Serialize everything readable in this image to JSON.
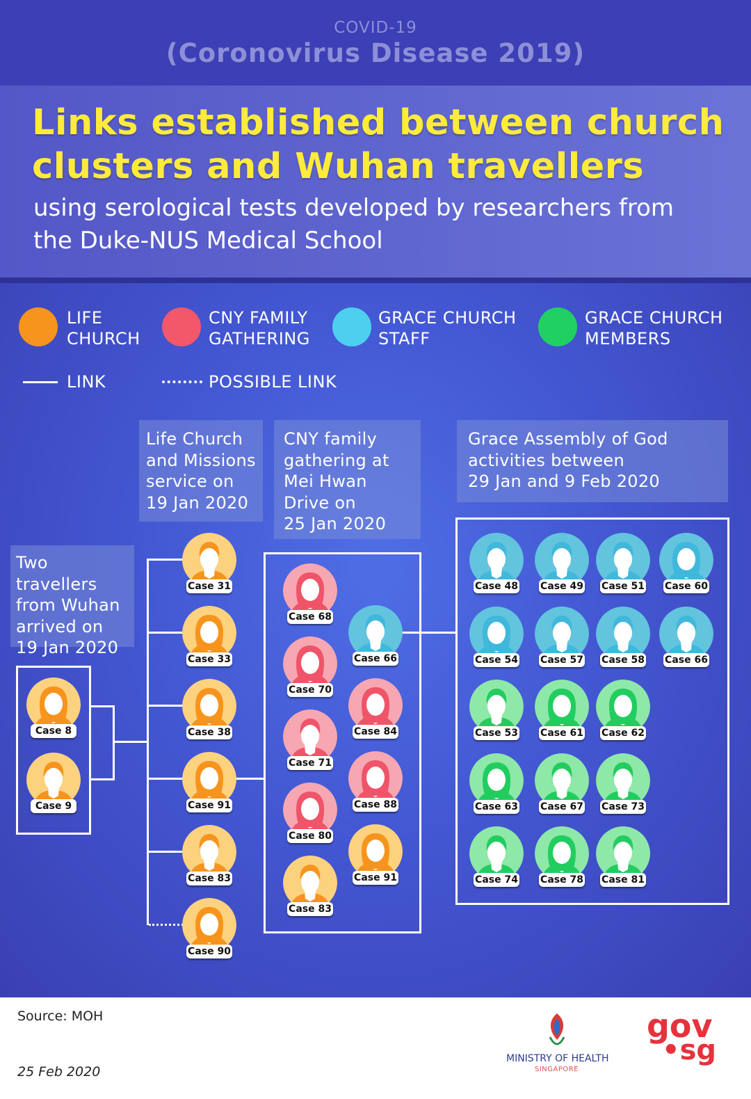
{
  "header": {
    "line1": "COVID-19",
    "line2": "(Coronovirus Disease 2019)",
    "title_line1": "Links established between church",
    "title_line2": "clusters and Wuhan travellers",
    "subtitle_line1": "using serological tests developed by researchers from",
    "subtitle_line2": "the Duke-NUS Medical School"
  },
  "legend": {
    "items": [
      {
        "line1": "LIFE",
        "line2": "CHURCH",
        "color": "#f7941d"
      },
      {
        "line1": "CNY FAMILY",
        "line2": "GATHERING",
        "color": "#f2576a"
      },
      {
        "line1": "GRACE CHURCH",
        "line2": "STAFF",
        "color": "#4dd0f0"
      },
      {
        "line1": "GRACE CHURCH",
        "line2": "MEMBERS",
        "color": "#20d063"
      }
    ],
    "link_label": "LINK",
    "possible_link_label": "POSSIBLE LINK"
  },
  "groups": {
    "wuhan": {
      "lines": [
        "Two travellers",
        "from Wuhan",
        "arrived on",
        "19 Jan 2020"
      ]
    },
    "life_church": {
      "lines": [
        "Life Church",
        "and Missions",
        "service on",
        "19 Jan 2020"
      ]
    },
    "cny": {
      "lines": [
        "CNY family",
        "gathering at",
        "Mei Hwan",
        "Drive on",
        "25 Jan 2020"
      ]
    },
    "grace": {
      "lines": [
        "Grace Assembly of God",
        "activities between",
        "29 Jan and 9 Feb 2020"
      ]
    }
  },
  "cases": {
    "wuhan": [
      {
        "label": "Case 8",
        "type": "life",
        "gender": "f"
      },
      {
        "label": "Case 9",
        "type": "life",
        "gender": "m"
      }
    ],
    "life_church": [
      {
        "label": "Case 31",
        "type": "life",
        "gender": "m"
      },
      {
        "label": "Case 33",
        "type": "life",
        "gender": "f"
      },
      {
        "label": "Case 38",
        "type": "life",
        "gender": "f"
      },
      {
        "label": "Case 91",
        "type": "life",
        "gender": "f"
      },
      {
        "label": "Case 83",
        "type": "life",
        "gender": "m"
      },
      {
        "label": "Case 90",
        "type": "life",
        "gender": "f"
      }
    ],
    "cny_left": [
      {
        "label": "Case 68",
        "type": "cny",
        "gender": "f"
      },
      {
        "label": "Case 70",
        "type": "cny",
        "gender": "f"
      },
      {
        "label": "Case 71",
        "type": "cny",
        "gender": "m"
      },
      {
        "label": "Case 80",
        "type": "cny",
        "gender": "f"
      },
      {
        "label": "Case 83",
        "type": "life",
        "gender": "m"
      }
    ],
    "cny_right": [
      {
        "label": "Case 66",
        "type": "staff",
        "gender": "m"
      },
      {
        "label": "Case 84",
        "type": "cny",
        "gender": "f"
      },
      {
        "label": "Case 88",
        "type": "cny",
        "gender": "f"
      },
      {
        "label": "Case 91",
        "type": "life",
        "gender": "f"
      }
    ],
    "grace_rows": [
      [
        {
          "label": "Case 48",
          "type": "staff",
          "gender": "m"
        },
        {
          "label": "Case 49",
          "type": "staff",
          "gender": "m"
        },
        {
          "label": "Case 51",
          "type": "staff",
          "gender": "m"
        },
        {
          "label": "Case 60",
          "type": "staff",
          "gender": "f"
        }
      ],
      [
        {
          "label": "Case 54",
          "type": "staff",
          "gender": "f"
        },
        {
          "label": "Case 57",
          "type": "staff",
          "gender": "m"
        },
        {
          "label": "Case 58",
          "type": "staff",
          "gender": "m"
        },
        {
          "label": "Case 66",
          "type": "staff",
          "gender": "m"
        }
      ],
      [
        {
          "label": "Case 53",
          "type": "member",
          "gender": "m"
        },
        {
          "label": "Case 61",
          "type": "member",
          "gender": "f"
        },
        {
          "label": "Case 62",
          "type": "member",
          "gender": "f"
        }
      ],
      [
        {
          "label": "Case 63",
          "type": "member",
          "gender": "f"
        },
        {
          "label": "Case 67",
          "type": "member",
          "gender": "m"
        },
        {
          "label": "Case 73",
          "type": "member",
          "gender": "m"
        }
      ],
      [
        {
          "label": "Case 74",
          "type": "member",
          "gender": "m"
        },
        {
          "label": "Case 78",
          "type": "member",
          "gender": "f"
        },
        {
          "label": "Case 81",
          "type": "member",
          "gender": "m"
        }
      ]
    ]
  },
  "colors": {
    "life": {
      "bg": "#fcd27f",
      "fg": "#f7941d"
    },
    "cny": {
      "bg": "#f7a7b1",
      "fg": "#ef5468"
    },
    "staff": {
      "bg": "#63c4dd",
      "fg": "#3fb8dc"
    },
    "member": {
      "bg": "#8ee8a8",
      "fg": "#22cd5f"
    }
  },
  "footer": {
    "source": "Source: MOH",
    "date": "25 Feb 2020",
    "ministry": "MINISTRY OF HEALTH",
    "ministry_country": "SINGAPORE",
    "gov_logo_line1": "gov",
    "gov_logo_line2": "•sg"
  }
}
